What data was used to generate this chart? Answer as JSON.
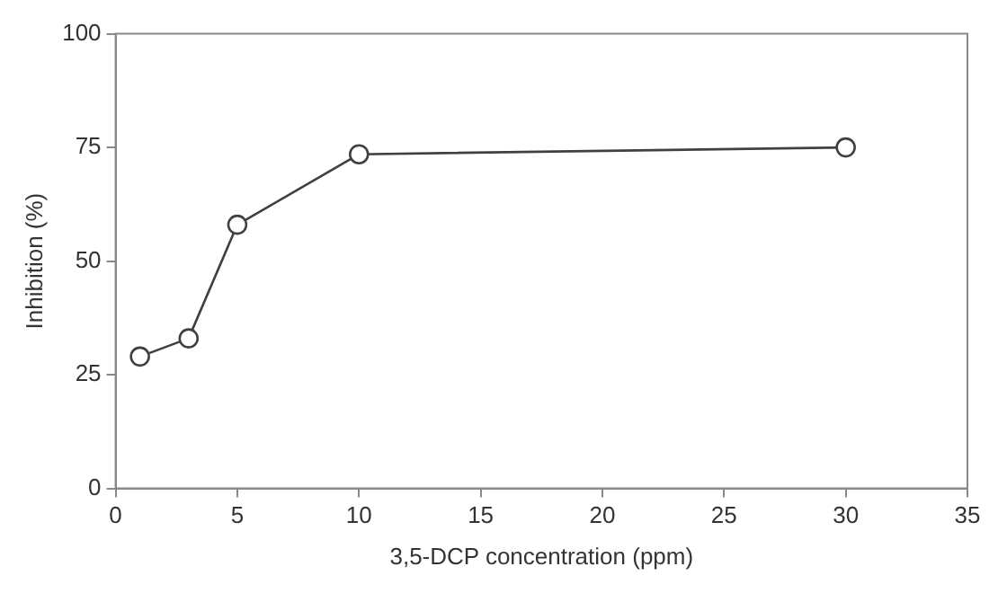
{
  "chart_data": {
    "type": "line",
    "xlabel": "3,5-DCP concentration (ppm)",
    "ylabel": "Inhibition (%)",
    "x": [
      1,
      3,
      5,
      10,
      30
    ],
    "series": [
      {
        "color": "#404040",
        "values": [
          29,
          33,
          58,
          73.5,
          75
        ]
      }
    ],
    "xlim": [
      0,
      35
    ],
    "xticks": [
      0,
      5,
      10,
      15,
      20,
      25,
      30,
      35
    ],
    "ylim": [
      0,
      100
    ],
    "yticks": [
      0,
      25,
      50,
      75,
      100
    ],
    "grid": false,
    "legend": false,
    "marker": "circle",
    "line_style": "solid"
  }
}
